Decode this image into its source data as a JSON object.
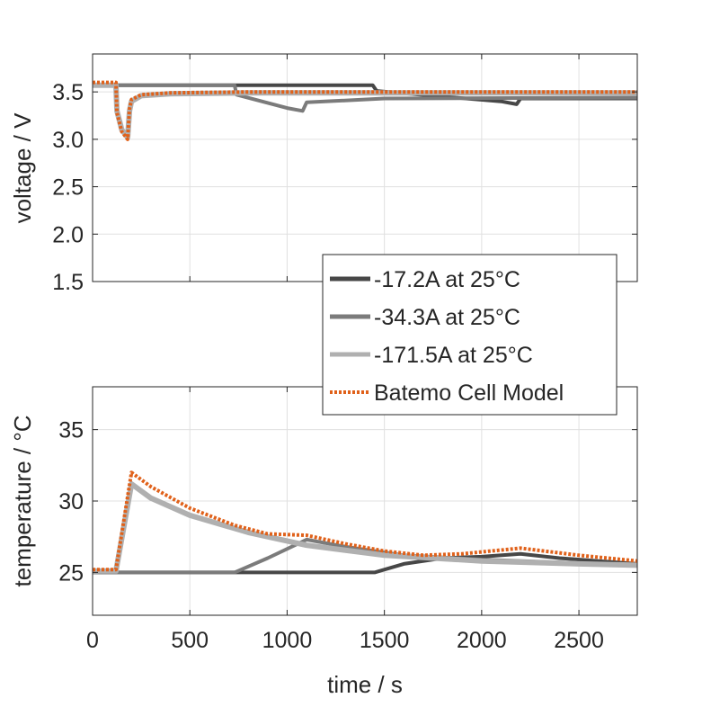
{
  "chart_data": [
    {
      "type": "line",
      "panel": "voltage",
      "title": "",
      "xlabel": "",
      "ylabel": "voltage / V",
      "xlim": [
        0,
        2800
      ],
      "ylim": [
        1.5,
        3.9
      ],
      "yticks": [
        "1.5",
        "2.0",
        "2.5",
        "3.0",
        "3.5"
      ],
      "ytick_values": [
        1.5,
        2.0,
        2.5,
        3.0,
        3.5
      ],
      "xticks": [
        0,
        500,
        1000,
        1500,
        2000,
        2500
      ],
      "grid": true,
      "series": [
        {
          "name": "-17.2A at 25°C",
          "x": [
            0,
            1440,
            1460,
            1800,
            2100,
            2180,
            2200,
            2800
          ],
          "y": [
            3.57,
            3.57,
            3.51,
            3.45,
            3.4,
            3.37,
            3.43,
            3.43
          ]
        },
        {
          "name": "-34.3A at 25°C",
          "x": [
            0,
            730,
            740,
            1000,
            1080,
            1100,
            1500,
            2800
          ],
          "y": [
            3.57,
            3.57,
            3.47,
            3.33,
            3.3,
            3.39,
            3.43,
            3.44
          ]
        },
        {
          "name": "-171.5A at 25°C",
          "x": [
            0,
            120,
            125,
            150,
            180,
            190,
            200,
            250,
            400,
            800,
            2800
          ],
          "y": [
            3.57,
            3.57,
            3.3,
            3.1,
            3.02,
            3.3,
            3.4,
            3.46,
            3.48,
            3.49,
            3.49
          ]
        },
        {
          "name": "Batemo Cell Model",
          "x": [
            0,
            120,
            125,
            150,
            180,
            190,
            200,
            250,
            400,
            800,
            2800
          ],
          "y": [
            3.6,
            3.6,
            3.28,
            3.08,
            3.0,
            3.32,
            3.42,
            3.47,
            3.49,
            3.5,
            3.5
          ]
        }
      ]
    },
    {
      "type": "line",
      "panel": "temperature",
      "title": "",
      "xlabel": "time / s",
      "ylabel": "temperature / °C",
      "xlim": [
        0,
        2800
      ],
      "ylim": [
        22,
        38
      ],
      "yticks": [
        "25",
        "30",
        "35"
      ],
      "ytick_values": [
        25,
        30,
        35
      ],
      "xticks": [
        "0",
        "500",
        "1000",
        "1500",
        "2000",
        "2500"
      ],
      "xtick_values": [
        0,
        500,
        1000,
        1500,
        2000,
        2500
      ],
      "grid": true,
      "series": [
        {
          "name": "-17.2A at 25°C",
          "x": [
            0,
            1450,
            1600,
            1800,
            2000,
            2200,
            2400,
            2600,
            2800
          ],
          "y": [
            25.0,
            25.0,
            25.6,
            26.0,
            26.1,
            26.3,
            26.0,
            25.8,
            25.6
          ]
        },
        {
          "name": "-34.3A at 25°C",
          "x": [
            0,
            730,
            900,
            1100,
            1300,
            1600,
            2000,
            2400,
            2800
          ],
          "y": [
            25.0,
            25.0,
            26.0,
            27.3,
            26.8,
            26.2,
            25.9,
            25.7,
            25.5
          ]
        },
        {
          "name": "-171.5A at 25°C",
          "x": [
            0,
            120,
            200,
            300,
            500,
            800,
            1100,
            1500,
            2000,
            2500,
            2800
          ],
          "y": [
            25.1,
            25.1,
            31.2,
            30.2,
            29.0,
            27.8,
            26.9,
            26.2,
            25.8,
            25.6,
            25.5
          ]
        },
        {
          "name": "Batemo Cell Model",
          "x": [
            0,
            120,
            200,
            300,
            500,
            730,
            900,
            1100,
            1300,
            1500,
            1700,
            1900,
            2200,
            2500,
            2800
          ],
          "y": [
            25.2,
            25.2,
            32.0,
            31.0,
            29.5,
            28.3,
            27.7,
            27.6,
            27.0,
            26.5,
            26.2,
            26.3,
            26.7,
            26.2,
            25.8
          ]
        }
      ]
    }
  ],
  "legend": {
    "placement": "between panels, right",
    "entries": [
      {
        "label": "-17.2A at 25°C",
        "color": "#474747",
        "dash": "solid"
      },
      {
        "label": "-34.3A at 25°C",
        "color": "#7b7b7b",
        "dash": "solid"
      },
      {
        "label": "-171.5A at 25°C",
        "color": "#b0b0b0",
        "dash": "solid"
      },
      {
        "label": "Batemo Cell Model",
        "color": "#e0611a",
        "dash": "dotted"
      }
    ]
  },
  "colors": {
    "series_1": "#474747",
    "series_2": "#7b7b7b",
    "series_3": "#b0b0b0",
    "model": "#e0611a",
    "grid": "#e0e0e0",
    "axis": "#262626"
  }
}
